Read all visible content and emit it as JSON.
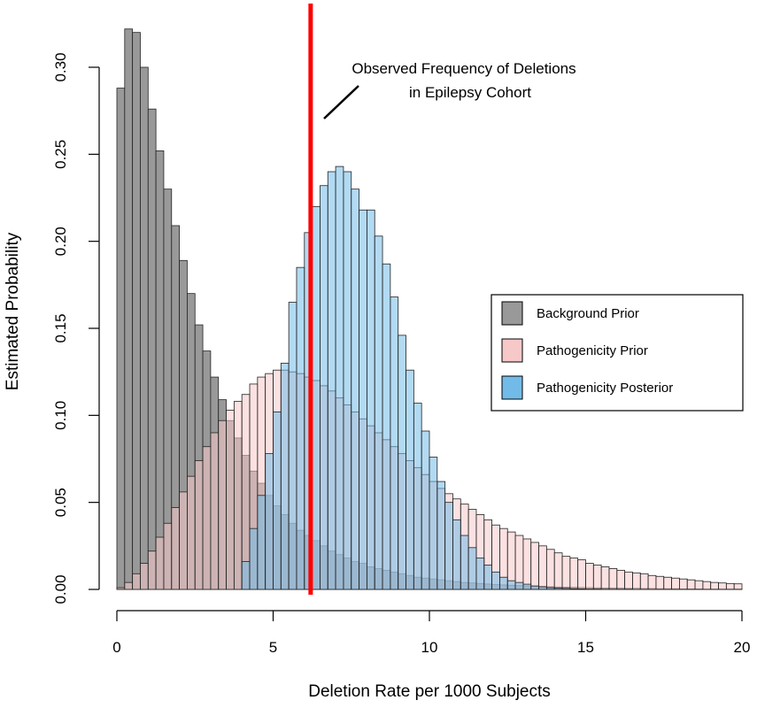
{
  "chart_data": {
    "type": "bar",
    "title": "",
    "xlabel": "Deletion Rate per 1000 Subjects",
    "ylabel": "Estimated Probability",
    "xlim": [
      0,
      20
    ],
    "ylim": [
      0,
      0.32
    ],
    "x_ticks": [
      "0",
      "5",
      "10",
      "15",
      "20"
    ],
    "y_ticks": [
      "0.00",
      "0.05",
      "0.10",
      "0.15",
      "0.20",
      "0.25",
      "0.30"
    ],
    "bin_width": 0.25,
    "bin_start": 0,
    "grid": false,
    "legend_position": "right",
    "series": [
      {
        "name": "Background Prior",
        "color": "#999999",
        "values": [
          0.288,
          0.322,
          0.32,
          0.3,
          0.276,
          0.252,
          0.23,
          0.209,
          0.189,
          0.17,
          0.152,
          0.137,
          0.122,
          0.109,
          0.097,
          0.087,
          0.077,
          0.068,
          0.061,
          0.054,
          0.048,
          0.043,
          0.038,
          0.034,
          0.031,
          0.028,
          0.025,
          0.022,
          0.02,
          0.018,
          0.016,
          0.015,
          0.013,
          0.012,
          0.011,
          0.01,
          0.009,
          0.008,
          0.007,
          0.0065,
          0.006,
          0.0055,
          0.005,
          0.0045,
          0.004,
          0.0037,
          0.0034,
          0.0031,
          0.0028,
          0.0026,
          0.0024,
          0.0022,
          0.002,
          0.0018,
          0.0017,
          0.0015,
          0.0014,
          0.0013,
          0.0012,
          0.0011,
          0.001,
          0.0009,
          0.0008,
          0.0008,
          0.0007,
          0.0006,
          0.0006,
          0.0005,
          0.0005,
          0.0004,
          0.0004,
          0.0004,
          0.0003,
          0.0003,
          0.0003,
          0.0002,
          0.0002,
          0.0002,
          0.0002,
          0.0002
        ]
      },
      {
        "name": "Pathogenicity Prior",
        "color": "#f7c8c8",
        "values": [
          0.001,
          0.004,
          0.009,
          0.015,
          0.022,
          0.03,
          0.038,
          0.047,
          0.056,
          0.065,
          0.074,
          0.082,
          0.09,
          0.097,
          0.103,
          0.108,
          0.112,
          0.118,
          0.122,
          0.124,
          0.126,
          0.126,
          0.125,
          0.124,
          0.122,
          0.12,
          0.117,
          0.114,
          0.11,
          0.106,
          0.102,
          0.098,
          0.094,
          0.09,
          0.086,
          0.082,
          0.078,
          0.074,
          0.07,
          0.066,
          0.062,
          0.058,
          0.055,
          0.052,
          0.049,
          0.046,
          0.043,
          0.04,
          0.037,
          0.035,
          0.033,
          0.031,
          0.029,
          0.027,
          0.025,
          0.023,
          0.021,
          0.019,
          0.018,
          0.017,
          0.015,
          0.014,
          0.013,
          0.012,
          0.011,
          0.01,
          0.0095,
          0.009,
          0.008,
          0.0075,
          0.007,
          0.0065,
          0.006,
          0.0055,
          0.005,
          0.0045,
          0.004,
          0.0037,
          0.0034,
          0.0032
        ]
      },
      {
        "name": "Pathogenicity Posterior",
        "color": "#72bbe8",
        "values": [
          0,
          0,
          0,
          0,
          0,
          0,
          0,
          0,
          0,
          0,
          0,
          0,
          0,
          0,
          0,
          0,
          0.016,
          0.035,
          0.054,
          0.078,
          0.102,
          0.13,
          0.165,
          0.185,
          0.205,
          0.22,
          0.232,
          0.24,
          0.243,
          0.24,
          0.23,
          0.218,
          0.218,
          0.203,
          0.187,
          0.168,
          0.146,
          0.126,
          0.107,
          0.091,
          0.076,
          0.062,
          0.05,
          0.04,
          0.031,
          0.024,
          0.018,
          0.014,
          0.01,
          0.007,
          0.005,
          0.004,
          0.003,
          0.002,
          0.0015,
          0.001,
          0.0008,
          0.0006,
          0.0004,
          0.0003,
          0.0002,
          0.0002,
          0.0001,
          0.0001,
          0.0001,
          0.0001,
          0,
          0,
          0,
          0,
          0,
          0,
          0,
          0,
          0,
          0,
          0,
          0,
          0,
          0
        ]
      }
    ],
    "observed_line": {
      "x": 6.2,
      "color": "#ff0000"
    },
    "annotation": {
      "lines": [
        "Observed Frequency of Deletions",
        "in Epilepsy Cohort"
      ]
    }
  }
}
